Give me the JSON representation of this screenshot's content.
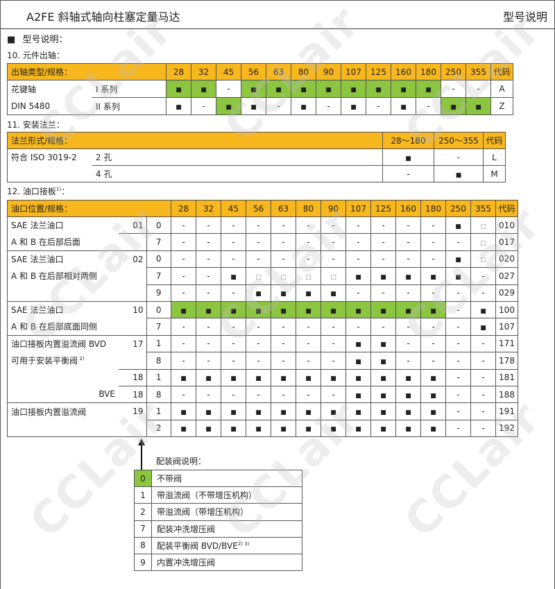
{
  "header": {
    "title": "A2FE 斜轴式轴向柱塞定量马达",
    "section": "型号说明"
  },
  "intro": {
    "bullet": "■",
    "label": "型号说明："
  },
  "watermark": "CCLair",
  "colors": {
    "header_yellow": "#f8b71c",
    "standard_green": "#8cc540",
    "border": "#555555"
  },
  "sizes": [
    "28",
    "32",
    "45",
    "56",
    "63",
    "80",
    "90",
    "107",
    "125",
    "160",
    "180",
    "250",
    "355"
  ],
  "shaft": {
    "section_label": "10. 元件出轴：",
    "header_label": "出轴类型/规格：",
    "code_header": "代码",
    "rows": [
      {
        "type": "花键轴",
        "series": "I 系列",
        "cells": [
          "■",
          "■",
          "-",
          "■",
          "■",
          "■",
          "■",
          "■",
          "■",
          "■",
          "■",
          "-",
          "-"
        ],
        "green": [
          0,
          1,
          3,
          4,
          5,
          6,
          7,
          8,
          9,
          10
        ],
        "code": "A"
      },
      {
        "type": "DIN 5480",
        "series": "II 系列",
        "cells": [
          "■",
          "-",
          "■",
          "■",
          "-",
          "■",
          "-",
          "■",
          "-",
          "■",
          "-",
          "■",
          "■"
        ],
        "green": [
          2,
          11,
          12
        ],
        "code": "Z"
      }
    ]
  },
  "flange": {
    "section_label": "11. 安装法兰：",
    "header_label": "法兰形式/规格：",
    "ranges": [
      "28～180",
      "250～355"
    ],
    "code_header": "代码",
    "rows": [
      {
        "type": "符合 ISO 3019-2",
        "holes": "2 孔",
        "cells": [
          "■",
          "-"
        ],
        "code": "L"
      },
      {
        "type": "",
        "holes": "4 孔",
        "cells": [
          "-",
          "■"
        ],
        "code": "M"
      }
    ]
  },
  "port": {
    "section_label": "12. 油口接板",
    "section_sup": "1)",
    "section_suffix": "：",
    "header_label": "油口位置/规格：",
    "code_header": "代码",
    "rows": [
      {
        "text": "SAE 法兰油口",
        "num": "01",
        "valve": "0",
        "cells": [
          "-",
          "-",
          "-",
          "-",
          "-",
          "-",
          "-",
          "-",
          "-",
          "-",
          "-",
          "■",
          "□"
        ],
        "green": [],
        "code": "010"
      },
      {
        "text": "A 和 B 在后部后面",
        "num": "",
        "valve": "7",
        "cells": [
          "-",
          "-",
          "-",
          "-",
          "-",
          "-",
          "-",
          "-",
          "-",
          "-",
          "-",
          "-",
          "□"
        ],
        "green": [],
        "code": "017"
      },
      {
        "text": "SAE 法兰油口",
        "num": "02",
        "valve": "0",
        "cells": [
          "-",
          "-",
          "-",
          "-",
          "-",
          "-",
          "-",
          "-",
          "-",
          "-",
          "-",
          "■",
          "□"
        ],
        "green": [],
        "code": "020"
      },
      {
        "text": "A 和 B 在后部相对两侧",
        "num": "",
        "valve": "7",
        "cells": [
          "-",
          "-",
          "■",
          "□",
          "□",
          "□",
          "□",
          "■",
          "■",
          "■",
          "■",
          "■",
          "-"
        ],
        "green": [],
        "code": "027"
      },
      {
        "text": "",
        "num": "",
        "valve": "9",
        "cells": [
          "-",
          "-",
          "-",
          "■",
          "■",
          "■",
          "■",
          "-",
          "-",
          "-",
          "-",
          "-",
          "-"
        ],
        "green": [],
        "code": "029"
      },
      {
        "text": "SAE 法兰油口",
        "num": "10",
        "valve": "0",
        "cells": [
          "■",
          "■",
          "■",
          "■",
          "■",
          "■",
          "■",
          "■",
          "■",
          "■",
          "■",
          "-",
          "■"
        ],
        "green": [
          0,
          1,
          2,
          3,
          4,
          5,
          6,
          7,
          8,
          9,
          10
        ],
        "code": "100"
      },
      {
        "text": "A 和 B 在后部底面同侧",
        "num": "",
        "valve": "7",
        "cells": [
          "-",
          "-",
          "-",
          "-",
          "-",
          "-",
          "-",
          "-",
          "-",
          "-",
          "-",
          "-",
          "■"
        ],
        "green": [],
        "code": "107"
      },
      {
        "text": "油口接板内置溢流阀 BVD",
        "num": "17",
        "valve": "1",
        "cells": [
          "-",
          "-",
          "-",
          "-",
          "-",
          "-",
          "-",
          "■",
          "■",
          "-",
          "-",
          "-",
          "-"
        ],
        "green": [],
        "code": "171"
      },
      {
        "text": "可用于安装平衡阀",
        "sup": "2)",
        "num": "",
        "valve": "8",
        "cells": [
          "-",
          "-",
          "-",
          "-",
          "-",
          "-",
          "-",
          "■",
          "■",
          "-",
          "-",
          "-",
          "-"
        ],
        "green": [],
        "code": "178"
      },
      {
        "text": "",
        "num": "18",
        "valve": "1",
        "cells": [
          "■",
          "■",
          "■",
          "■",
          "■",
          "■",
          "■",
          "■",
          "■",
          "■",
          "■",
          "-",
          "-"
        ],
        "green": [],
        "code": "181"
      },
      {
        "text": "",
        "prefix": "BVE",
        "num": "18",
        "valve": "8",
        "cells": [
          "-",
          "-",
          "-",
          "-",
          "-",
          "-",
          "-",
          "■",
          "■",
          "■",
          "■",
          "-",
          "-"
        ],
        "green": [],
        "code": "188"
      },
      {
        "text": "油口接板内置溢流阀",
        "num": "19",
        "valve": "1",
        "cells": [
          "■",
          "■",
          "■",
          "■",
          "■",
          "■",
          "■",
          "■",
          "■",
          "■",
          "■",
          "-",
          "-"
        ],
        "green": [],
        "code": "191"
      },
      {
        "text": "",
        "num": "",
        "valve": "2",
        "cells": [
          "■",
          "■",
          "■",
          "■",
          "■",
          "■",
          "■",
          "■",
          "■",
          "■",
          "■",
          "-",
          "-"
        ],
        "green": [],
        "code": "192"
      }
    ]
  },
  "valve_legend": {
    "title": "配装阀说明：",
    "rows": [
      {
        "code": "0",
        "desc": "不带阀",
        "green": true
      },
      {
        "code": "1",
        "desc": "带溢流阀（不带增压机构）"
      },
      {
        "code": "2",
        "desc": "带溢流阀（带增压机构）"
      },
      {
        "code": "7",
        "desc": "配装冲洗增压阀"
      },
      {
        "code": "8",
        "desc": "配装平衡阀 BVD/BVE",
        "sup": "2) 3)"
      },
      {
        "code": "9",
        "desc": "内置冲洗增压阀"
      }
    ]
  }
}
